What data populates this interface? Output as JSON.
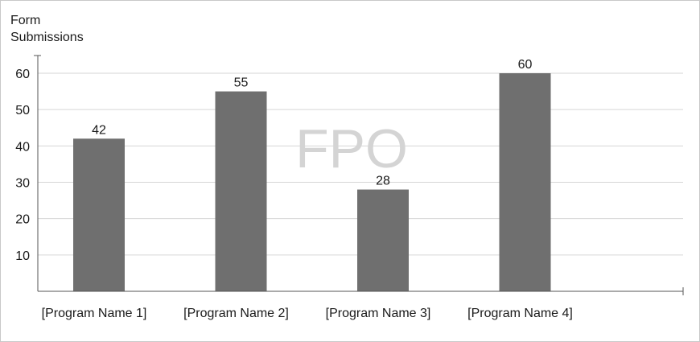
{
  "chart_data": {
    "type": "bar",
    "ylabel_lines": [
      "Form",
      "Submissions"
    ],
    "watermark": "FPO",
    "categories": [
      "[Program Name 1]",
      "[Program Name 2]",
      "[Program Name 3]",
      "[Program Name 4]"
    ],
    "values": [
      42,
      55,
      28,
      60
    ],
    "yticks": [
      10,
      20,
      30,
      40,
      50,
      60
    ],
    "ylim": [
      0,
      65
    ],
    "grid": true,
    "colors": {
      "bar": "#6f6f6f",
      "grid": "#d6d6d6",
      "axis": "#555555"
    }
  }
}
